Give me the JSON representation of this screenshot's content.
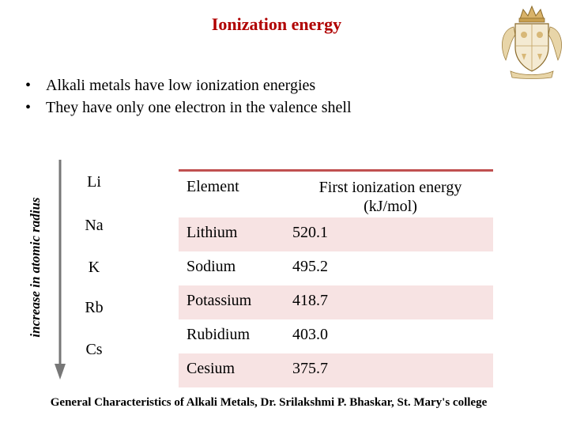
{
  "title": "Ionization energy",
  "bullets": [
    "Alkali metals have low ionization energies",
    "They have only one electron in the valence shell"
  ],
  "axis_label": "increase in atomic radius",
  "symbols": [
    "Li",
    "Na",
    "K",
    "Rb",
    "Cs"
  ],
  "table": {
    "headers": {
      "element": "Element",
      "energy": "First ionization energy (kJ/mol)"
    },
    "rows": [
      {
        "element": "Lithium",
        "energy": "520.1"
      },
      {
        "element": "Sodium",
        "energy": "495.2"
      },
      {
        "element": "Potassium",
        "energy": "418.7"
      },
      {
        "element": "Rubidium",
        "energy": "403.0"
      },
      {
        "element": "Cesium",
        "energy": "375.7"
      }
    ]
  },
  "footer": "General Characteristics of Alkali Metals, Dr. Srilakshmi P. Bhaskar, St. Mary's college",
  "colors": {
    "title": "#b00000",
    "table_accent": "#c05050",
    "table_shade": "#f7e3e3"
  }
}
